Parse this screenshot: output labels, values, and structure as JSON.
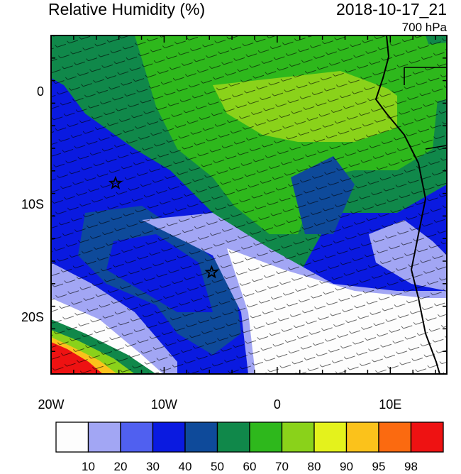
{
  "header": {
    "title": "Relative Humidity (%)",
    "datetime": "2018-10-17_21",
    "level": "700 hPa"
  },
  "map": {
    "lon_labels": [
      "20W",
      "10W",
      "0",
      "10E"
    ],
    "lat_labels": [
      "0",
      "10S",
      "20S"
    ],
    "lon_range": [
      -20,
      15
    ],
    "lat_range": [
      -25,
      5
    ],
    "markers": [
      {
        "name": "star-marker-1",
        "lon": -14.3,
        "lat": -8.1
      },
      {
        "name": "star-marker-2",
        "lon": -5.8,
        "lat": -16.0
      }
    ]
  },
  "colorbar": {
    "labels": [
      "10",
      "20",
      "30",
      "40",
      "50",
      "60",
      "70",
      "80",
      "90",
      "95",
      "98"
    ],
    "colors": [
      "#fdfdfd",
      "#a2a6f4",
      "#5060f0",
      "#0a1ae0",
      "#0e4a9a",
      "#10884a",
      "#2eb81c",
      "#8ad21a",
      "#e4f21c",
      "#fbc21b",
      "#fb6a10",
      "#ee1212"
    ]
  }
}
